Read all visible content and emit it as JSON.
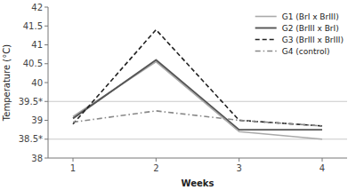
{
  "chart_data": {
    "type": "line",
    "x_label": "Weeks",
    "y_label": "Temperature (°C)",
    "x": [
      1,
      2,
      3,
      4
    ],
    "xlim": [
      0.7,
      4.3
    ],
    "xticks": [
      1,
      2,
      3,
      4
    ],
    "ylim": [
      38,
      42
    ],
    "yticks": [
      38,
      {
        "value": 38.5,
        "label": "38.5*"
      },
      39,
      {
        "value": 39.5,
        "label": "39.5*"
      },
      40,
      40.5,
      41,
      41.5,
      42
    ],
    "hlines": [
      38.5,
      39.5
    ],
    "grid": false,
    "legend": "upper right",
    "series": [
      {
        "name": "G1 (BrI x BrIII)",
        "color": "#aaaaaa",
        "line_style": "solid",
        "values": [
          39.1,
          40.55,
          38.7,
          38.5
        ]
      },
      {
        "name": "G2 (BrIII x BrI)",
        "color": "#555555",
        "line_style": "solid",
        "values": [
          39.05,
          40.6,
          38.75,
          38.75
        ]
      },
      {
        "name": "G3 (BrIII x BrIII)",
        "color": "#222222",
        "line_style": "dashed",
        "values": [
          38.9,
          41.4,
          39.0,
          38.85
        ]
      },
      {
        "name": "G4 (control)",
        "color": "#888888",
        "line_style": "dashdot",
        "values": [
          38.95,
          39.25,
          39.0,
          38.85
        ]
      }
    ]
  }
}
